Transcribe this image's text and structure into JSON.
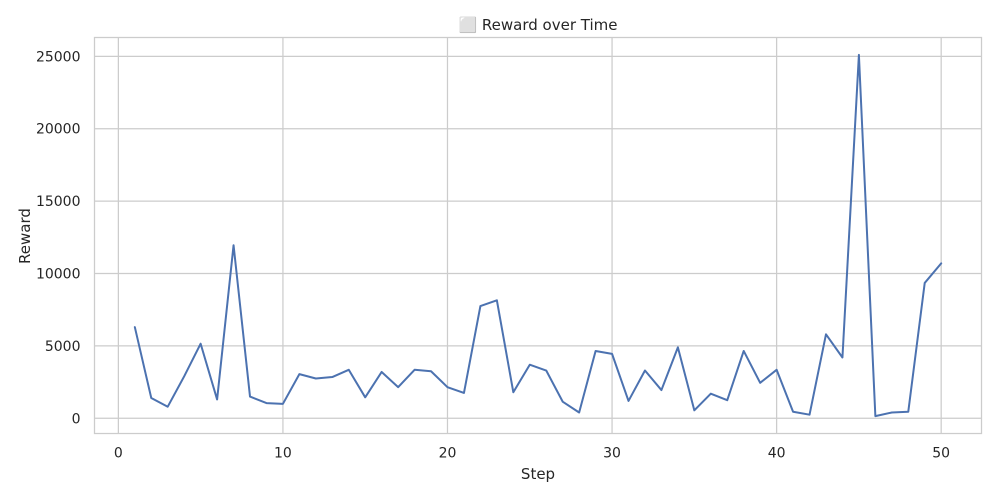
{
  "chart_data": {
    "type": "line",
    "title": "⬜ Reward over Time",
    "xlabel": "Step",
    "ylabel": "Reward",
    "xlim": [
      -1.45,
      52.45
    ],
    "ylim": [
      -1050,
      26300
    ],
    "xticks": [
      0,
      10,
      20,
      30,
      40,
      50
    ],
    "yticks": [
      0,
      5000,
      10000,
      15000,
      20000,
      25000
    ],
    "grid": true,
    "legend": "none",
    "line_color": "#4c72b0",
    "grid_color": "#cccccc",
    "series": [
      {
        "x": [
          1,
          2,
          3,
          4,
          5,
          6,
          7,
          8,
          9,
          10,
          11,
          12,
          13,
          14,
          15,
          16,
          17,
          18,
          19,
          20,
          21,
          22,
          23,
          24,
          25,
          26,
          27,
          28,
          29,
          30,
          31,
          32,
          33,
          34,
          35,
          36,
          37,
          38,
          39,
          40,
          41,
          42,
          43,
          44,
          45,
          46,
          47,
          48,
          49,
          50
        ],
        "values": [
          6300,
          1400,
          800,
          2900,
          5150,
          1300,
          11950,
          1500,
          1050,
          1000,
          3050,
          2750,
          2850,
          3350,
          1450,
          3200,
          2150,
          3350,
          3250,
          2150,
          1750,
          7750,
          8150,
          1800,
          3700,
          3300,
          1150,
          400,
          4650,
          4450,
          1200,
          3300,
          1950,
          4900,
          550,
          1700,
          1250,
          4650,
          2450,
          3350,
          450,
          250,
          5800,
          4200,
          25100,
          150,
          400,
          450,
          9350,
          10700
        ]
      }
    ]
  }
}
